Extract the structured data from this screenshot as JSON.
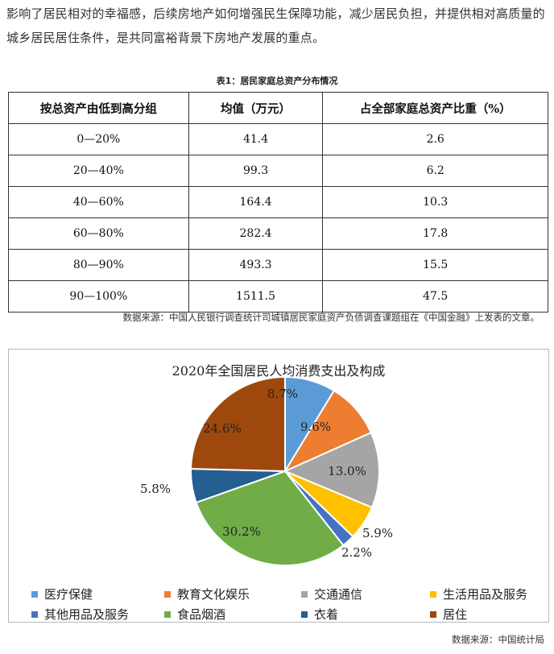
{
  "article": {
    "paragraph": "影响了居民相对的幸福感，后续房地产如何增强民生保障功能，减少居民负担，并提供相对高质量的城乡居民居住条件，是共同富裕背景下房地产发展的重点。"
  },
  "table": {
    "caption": "表1：居民家庭总资产分布情况",
    "headers": [
      "按总资产由低到高分组",
      "均值（万元）",
      "占全部家庭总资产比重（%）"
    ],
    "rows": [
      [
        "0—20%",
        "41.4",
        "2.6"
      ],
      [
        "20—40%",
        "99.3",
        "6.2"
      ],
      [
        "40—60%",
        "164.4",
        "10.3"
      ],
      [
        "60—80%",
        "282.4",
        "17.8"
      ],
      [
        "80—90%",
        "493.3",
        "15.5"
      ],
      [
        "90—100%",
        "1511.5",
        "47.5"
      ]
    ],
    "source": "数据来源：中国人民银行调查统计司城镇居民家庭资产负债调查课题组在《中国金融》上发表的文章。"
  },
  "chart_data": {
    "type": "pie",
    "title": "2020年全国居民人均消费支出及构成",
    "legend_position": "bottom",
    "slices": [
      {
        "label": "医疗保健",
        "value": 8.7,
        "display": "8.7%",
        "color": "#5b9bd5"
      },
      {
        "label": "教育文化娱乐",
        "value": 9.6,
        "display": "9.6%",
        "color": "#ed7d31"
      },
      {
        "label": "交通通信",
        "value": 13.0,
        "display": "13.0%",
        "color": "#a5a5a5"
      },
      {
        "label": "生活用品及服务",
        "value": 5.9,
        "display": "5.9%",
        "color": "#ffc000"
      },
      {
        "label": "其他用品及服务",
        "value": 2.2,
        "display": "2.2%",
        "color": "#4472c4"
      },
      {
        "label": "食品烟酒",
        "value": 30.2,
        "display": "30.2%",
        "color": "#70ad47"
      },
      {
        "label": "衣着",
        "value": 5.8,
        "display": "5.8%",
        "color": "#255e91"
      },
      {
        "label": "居住",
        "value": 24.6,
        "display": "24.6%",
        "color": "#9e480e"
      }
    ],
    "source": "数据来源：中国统计局"
  }
}
